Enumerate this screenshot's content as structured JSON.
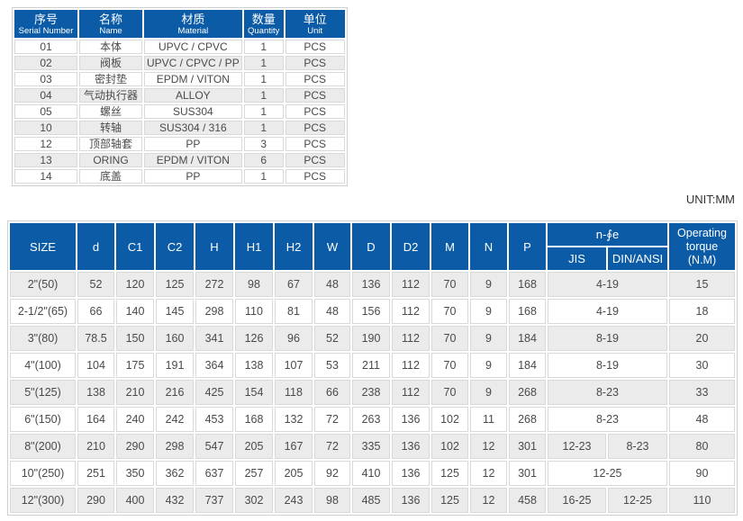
{
  "parts_table": {
    "headers": [
      {
        "cn": "序号",
        "en": "Serial Number"
      },
      {
        "cn": "名称",
        "en": "Name"
      },
      {
        "cn": "材质",
        "en": "Material"
      },
      {
        "cn": "数量",
        "en": "Quantity"
      },
      {
        "cn": "单位",
        "en": "Unit"
      }
    ],
    "rows": [
      {
        "serial": "01",
        "name": "本体",
        "material": "UPVC / CPVC",
        "qty": "1",
        "unit": "PCS"
      },
      {
        "serial": "02",
        "name": "阀板",
        "material": "UPVC / CPVC / PP",
        "qty": "1",
        "unit": "PCS"
      },
      {
        "serial": "03",
        "name": "密封垫",
        "material": "EPDM / VITON",
        "qty": "1",
        "unit": "PCS"
      },
      {
        "serial": "04",
        "name": "气动执行器",
        "material": "ALLOY",
        "qty": "1",
        "unit": "PCS"
      },
      {
        "serial": "05",
        "name": "螺丝",
        "material": "SUS304",
        "qty": "1",
        "unit": "PCS"
      },
      {
        "serial": "10",
        "name": "转轴",
        "material": "SUS304 / 316",
        "qty": "1",
        "unit": "PCS"
      },
      {
        "serial": "12",
        "name": "顶部轴套",
        "material": "PP",
        "qty": "3",
        "unit": "PCS"
      },
      {
        "serial": "13",
        "name": "ORING",
        "material": "EPDM / VITON",
        "qty": "6",
        "unit": "PCS"
      },
      {
        "serial": "14",
        "name": "底盖",
        "material": "PP",
        "qty": "1",
        "unit": "PCS"
      }
    ]
  },
  "unit_note": "UNIT:MM",
  "dimensions_table": {
    "columns": [
      "SIZE",
      "d",
      "C1",
      "C2",
      "H",
      "H1",
      "H2",
      "W",
      "D",
      "D2",
      "M",
      "N",
      "P"
    ],
    "n_e_label": "n-∮e",
    "sub_columns": [
      "JIS",
      "DIN/ANSI"
    ],
    "torque_label": "Operating\ntorque\n(N.M)",
    "rows": [
      {
        "size": "2\"(50)",
        "values": [
          "52",
          "120",
          "125",
          "272",
          "98",
          "67",
          "48",
          "136",
          "112",
          "70",
          "9",
          "168"
        ],
        "n_e": [
          "4-19"
        ],
        "torque": "15"
      },
      {
        "size": "2-1/2\"(65)",
        "values": [
          "66",
          "140",
          "145",
          "298",
          "110",
          "81",
          "48",
          "156",
          "112",
          "70",
          "9",
          "168"
        ],
        "n_e": [
          "4-19"
        ],
        "torque": "18"
      },
      {
        "size": "3\"(80)",
        "values": [
          "78.5",
          "150",
          "160",
          "341",
          "126",
          "96",
          "52",
          "190",
          "112",
          "70",
          "9",
          "184"
        ],
        "n_e": [
          "8-19"
        ],
        "torque": "20"
      },
      {
        "size": "4\"(100)",
        "values": [
          "104",
          "175",
          "191",
          "364",
          "138",
          "107",
          "53",
          "211",
          "112",
          "70",
          "9",
          "184"
        ],
        "n_e": [
          "8-19"
        ],
        "torque": "30"
      },
      {
        "size": "5\"(125)",
        "values": [
          "138",
          "210",
          "216",
          "425",
          "154",
          "118",
          "66",
          "238",
          "112",
          "70",
          "9",
          "268"
        ],
        "n_e": [
          "8-23"
        ],
        "torque": "33"
      },
      {
        "size": "6\"(150)",
        "values": [
          "164",
          "240",
          "242",
          "453",
          "168",
          "132",
          "72",
          "263",
          "136",
          "102",
          "11",
          "268"
        ],
        "n_e": [
          "8-23"
        ],
        "torque": "48"
      },
      {
        "size": "8\"(200)",
        "values": [
          "210",
          "290",
          "298",
          "547",
          "205",
          "167",
          "72",
          "335",
          "136",
          "102",
          "12",
          "301"
        ],
        "n_e": [
          "12-23",
          "8-23"
        ],
        "torque": "80"
      },
      {
        "size": "10\"(250)",
        "values": [
          "251",
          "350",
          "362",
          "637",
          "257",
          "205",
          "92",
          "410",
          "136",
          "125",
          "12",
          "301"
        ],
        "n_e": [
          "12-25"
        ],
        "torque": "90"
      },
      {
        "size": "12\"(300)",
        "values": [
          "290",
          "400",
          "432",
          "737",
          "302",
          "243",
          "98",
          "485",
          "136",
          "125",
          "12",
          "458"
        ],
        "n_e": [
          "16-25",
          "12-25"
        ],
        "torque": "110"
      }
    ]
  },
  "colors": {
    "header_blue": "#0b5ba7",
    "row_alt_gray": "#ebebeb"
  }
}
